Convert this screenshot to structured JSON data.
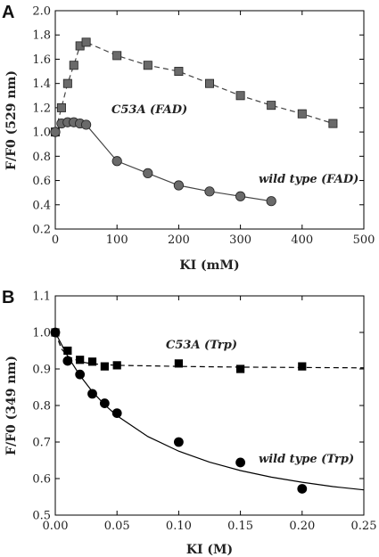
{
  "chart_data": [
    {
      "type": "scatter",
      "panel_label": "A",
      "xlabel": "KI (mM)",
      "ylabel": "F/F0 (529 nm)",
      "xlim": [
        0,
        500
      ],
      "ylim": [
        0.2,
        2.0
      ],
      "xticks": [
        0,
        100,
        200,
        300,
        400,
        500
      ],
      "yticks": [
        0.2,
        0.4,
        0.6,
        0.8,
        1.0,
        1.2,
        1.4,
        1.6,
        1.8,
        2.0
      ],
      "xtick_labels": [
        "0",
        "100",
        "200",
        "300",
        "400",
        "500"
      ],
      "ytick_labels": [
        "0.2",
        "0.4",
        "0.6",
        "0.8",
        "1.0",
        "1.2",
        "1.4",
        "1.6",
        "1.8",
        "2.0"
      ],
      "grid": false,
      "series": [
        {
          "name": "C53A (FAD)",
          "marker": "square",
          "line": "dashed",
          "color": "#555555",
          "x": [
            0,
            10,
            20,
            30,
            40,
            50,
            100,
            150,
            200,
            250,
            300,
            350,
            400,
            450
          ],
          "y": [
            1.0,
            1.2,
            1.4,
            1.55,
            1.71,
            1.74,
            1.63,
            1.55,
            1.5,
            1.4,
            1.3,
            1.22,
            1.15,
            1.07
          ]
        },
        {
          "name": "wild type (FAD)",
          "marker": "circle",
          "line": "solid",
          "color": "#555555",
          "x": [
            0,
            10,
            20,
            30,
            40,
            50,
            100,
            150,
            200,
            250,
            300,
            350
          ],
          "y": [
            1.0,
            1.07,
            1.08,
            1.08,
            1.07,
            1.06,
            0.76,
            0.66,
            0.56,
            0.51,
            0.47,
            0.43
          ]
        }
      ]
    },
    {
      "type": "scatter",
      "panel_label": "B",
      "xlabel": "KI (M)",
      "ylabel": "F/F0 (349 nm)",
      "xlim": [
        0,
        0.25
      ],
      "ylim": [
        0.5,
        1.1
      ],
      "xticks": [
        0,
        0.05,
        0.1,
        0.15,
        0.2,
        0.25
      ],
      "yticks": [
        0.5,
        0.6,
        0.7,
        0.8,
        0.9,
        1.0,
        1.1
      ],
      "xtick_labels": [
        "0.00",
        "0.05",
        "0.10",
        "0.15",
        "0.20",
        "0.25"
      ],
      "ytick_labels": [
        "0.5",
        "0.6",
        "0.7",
        "0.8",
        "0.9",
        "1.0",
        "1.1"
      ],
      "grid": false,
      "series": [
        {
          "name": "C53A (Trp)",
          "marker": "square",
          "line": "dashed",
          "color": "#000000",
          "x": [
            0,
            0.01,
            0.02,
            0.03,
            0.04,
            0.05,
            0.1,
            0.15,
            0.2
          ],
          "y": [
            1.0,
            0.95,
            0.925,
            0.92,
            0.907,
            0.91,
            0.915,
            0.9,
            0.907
          ],
          "fit": {
            "x": [
              0,
              0.005,
              0.01,
              0.02,
              0.03,
              0.05,
              0.1,
              0.15,
              0.2,
              0.25
            ],
            "y": [
              1.0,
              0.955,
              0.935,
              0.92,
              0.914,
              0.91,
              0.907,
              0.905,
              0.904,
              0.903
            ]
          }
        },
        {
          "name": "wild type (Trp)",
          "marker": "circle",
          "line": "solid",
          "color": "#000000",
          "x": [
            0,
            0.01,
            0.02,
            0.03,
            0.04,
            0.05,
            0.1,
            0.15,
            0.2
          ],
          "y": [
            1.0,
            0.922,
            0.885,
            0.832,
            0.806,
            0.779,
            0.7,
            0.644,
            0.572
          ],
          "fit": {
            "x": [
              0,
              0.01,
              0.02,
              0.03,
              0.04,
              0.05,
              0.075,
              0.1,
              0.125,
              0.15,
              0.175,
              0.2,
              0.225,
              0.25
            ],
            "y": [
              1.0,
              0.935,
              0.882,
              0.838,
              0.802,
              0.772,
              0.715,
              0.675,
              0.645,
              0.622,
              0.604,
              0.59,
              0.578,
              0.569
            ]
          }
        }
      ]
    }
  ]
}
